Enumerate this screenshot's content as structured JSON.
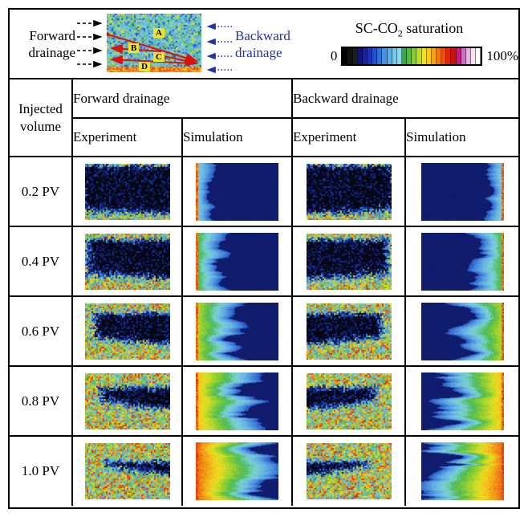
{
  "legend": {
    "forward_label_line1": "Forward",
    "forward_label_line2": "drainage",
    "backward_label_line1": "Backward",
    "backward_label_line2": "drainage",
    "backward_color": "#2233aa",
    "arrow_color_forward": "#000000",
    "arrow_color_red": "#dd1111",
    "schematic_labels": [
      "A",
      "B",
      "C",
      "D"
    ],
    "colorbar": {
      "title_prefix": "SC-CO",
      "title_sub": "2",
      "title_suffix": " saturation",
      "min_label": "0",
      "max_label": "100%",
      "segments": [
        "#000000",
        "#111111",
        "#1e1e1e",
        "#14147a",
        "#182492",
        "#1c34b2",
        "#2450ca",
        "#3270d6",
        "#4492e0",
        "#58b0e8",
        "#70cdee",
        "#86dcec",
        "#3aaa40",
        "#54be36",
        "#84ce2c",
        "#bcde26",
        "#f0e222",
        "#f6c81c",
        "#f4a216",
        "#f07a10",
        "#e8500c",
        "#de260a",
        "#c41414",
        "#d21488",
        "#cc70c6",
        "#e6b4e2",
        "#f6e2f2",
        "#ffffff"
      ]
    }
  },
  "table": {
    "corner_header_line1": "Injected",
    "corner_header_line2": "volume",
    "groups": [
      {
        "label": "Forward drainage",
        "columns": [
          "Experiment",
          "Simulation"
        ]
      },
      {
        "label": "Backward drainage",
        "columns": [
          "Experiment",
          "Simulation"
        ]
      }
    ],
    "rows": [
      {
        "label": "0.2 PV",
        "progress": 0.2
      },
      {
        "label": "0.4 PV",
        "progress": 0.4
      },
      {
        "label": "0.6 PV",
        "progress": 0.6
      },
      {
        "label": "0.8 PV",
        "progress": 0.8
      },
      {
        "label": "1.0 PV",
        "progress": 1.0
      }
    ]
  }
}
